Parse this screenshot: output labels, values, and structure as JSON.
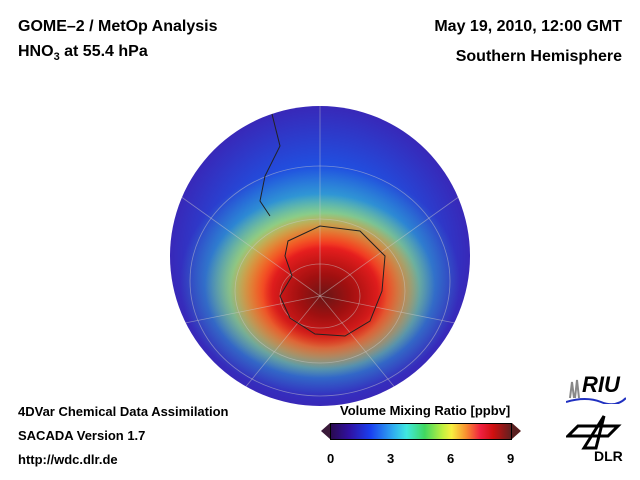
{
  "header": {
    "title_left_1": "GOME–2 / MetOp Analysis",
    "title_left_2_prefix": "HNO",
    "title_left_2_sub": "3",
    "title_left_2_suffix": " at 55.4 hPa",
    "title_right_1": "May 19, 2010, 12:00 GMT",
    "title_right_2": "Southern Hemisphere"
  },
  "footer": {
    "line1": "4DVar Chemical Data Assimilation",
    "line2": "SACADA Version 1.7",
    "line3": "http://wdc.dlr.de"
  },
  "colorbar": {
    "title": "Volume Mixing Ratio [ppbv]",
    "ticks": [
      "0",
      "3",
      "6",
      "9"
    ],
    "min": 0,
    "max": 10
  },
  "logos": {
    "riu": "RIU",
    "dlr": "DLR"
  }
}
